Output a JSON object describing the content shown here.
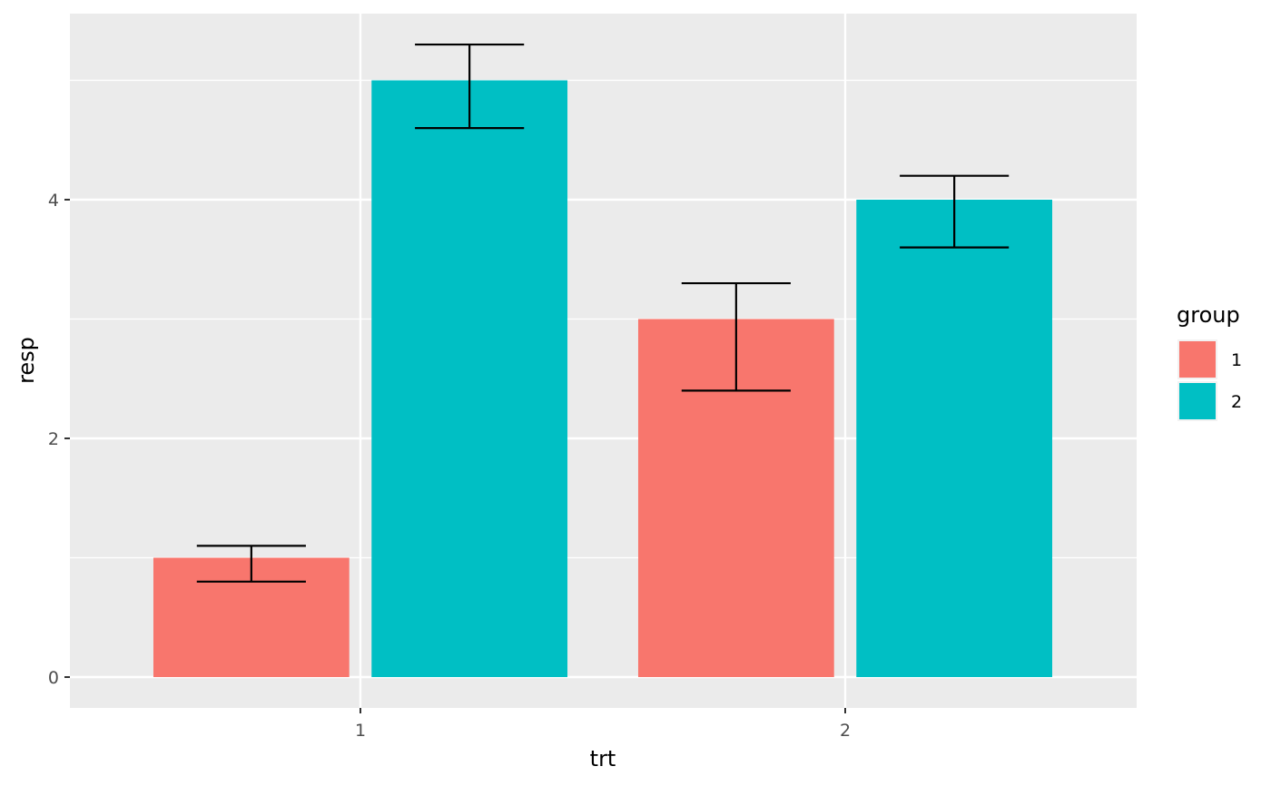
{
  "chart_data": {
    "type": "bar",
    "xlabel": "trt",
    "ylabel": "resp",
    "categories": [
      "1",
      "2"
    ],
    "ylim": [
      -0.27,
      5.55
    ],
    "yticks": [
      0,
      2,
      4
    ],
    "grid": true,
    "legend_position": "right",
    "legend_title": "group",
    "series": [
      {
        "name": "1",
        "color": "#F8766D",
        "values": [
          1,
          3
        ],
        "lower": [
          0.8,
          2.4
        ],
        "upper": [
          1.1,
          3.3
        ]
      },
      {
        "name": "2",
        "color": "#00BFC4",
        "values": [
          5,
          4
        ],
        "lower": [
          4.6,
          3.6
        ],
        "upper": [
          5.3,
          4.2
        ]
      }
    ]
  }
}
